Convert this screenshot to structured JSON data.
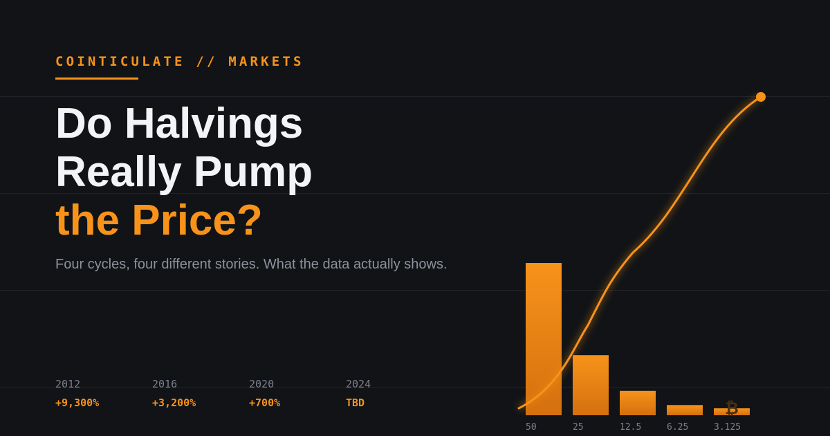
{
  "header": {
    "kicker": "COINTICULATE // MARKETS",
    "title_line1": "Do Halvings",
    "title_line2": "Really Pump",
    "title_line3": "the Price?",
    "subtitle": "Four cycles, four different stories. What the data actually shows."
  },
  "stats": [
    {
      "year": "2012",
      "value": "+9,300%"
    },
    {
      "year": "2016",
      "value": "+3,200%"
    },
    {
      "year": "2020",
      "value": "+700%"
    },
    {
      "year": "2024",
      "value": "TBD"
    }
  ],
  "icons": {
    "bitcoin_mark": "bitcoin-icon"
  },
  "colors": {
    "accent": "#f7931a",
    "accent_dark": "#d4700e",
    "background": "#111317"
  },
  "chart_data": {
    "type": "bar",
    "categories": [
      "50",
      "25",
      "12.5",
      "6.25",
      "3.125"
    ],
    "values": [
      50,
      25,
      12.5,
      6.25,
      3.125
    ],
    "title": "",
    "xlabel": "",
    "ylabel": "",
    "grid": false,
    "overlay_line": {
      "type": "line",
      "trend": "rising"
    },
    "bar_glyph": "₿"
  }
}
